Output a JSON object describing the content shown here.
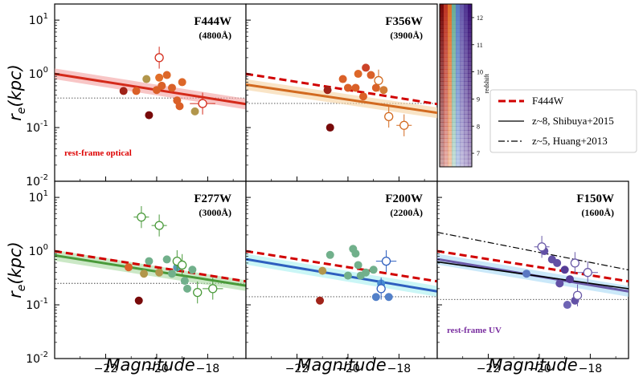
{
  "chart_data": {
    "type": "scatter",
    "layout": "2x3 grid of panels sharing axes",
    "xlabel": "Magnitude",
    "ylabel": "r_e(kpc)",
    "xlim": [
      -24,
      -16.5
    ],
    "ylim_log10": [
      -2,
      1.3
    ],
    "y_scale": "log",
    "x_ticks": [
      -22,
      -20,
      -18
    ],
    "y_ticks": [
      "10^1",
      "10^0",
      "10^-1",
      "10^-2"
    ],
    "legend": {
      "placement": "right",
      "entries": [
        {
          "label": "F444W",
          "style": "dashed",
          "color": "#d10000"
        },
        {
          "label": "z~8, Shibuya+2015",
          "style": "solid",
          "color": "#000000"
        },
        {
          "label": "z~5, Huang+2013",
          "style": "dashdot",
          "color": "#000000"
        }
      ]
    },
    "colorbar": {
      "label": "redshift",
      "ticks": [
        "7",
        "8",
        "9",
        "10",
        "11",
        "12"
      ],
      "range": [
        6.5,
        12.5
      ]
    },
    "panels": [
      {
        "title": "F444W",
        "subtitle": "(4800Å)",
        "note": "rest-frame optical",
        "note_color": "#dd0000",
        "color": "#d42a1a",
        "band_color": "#f4a0a0",
        "fit": {
          "a": 0.0,
          "m0": -24,
          "slope": -0.075
        },
        "ref_f444w": false,
        "shibuya": false,
        "huang": false,
        "dotted_level": -0.45,
        "points": [
          {
            "x": -21.3,
            "y": 0.48,
            "z": 7.0
          },
          {
            "x": -20.8,
            "y": 0.48,
            "z": 8.0
          },
          {
            "x": -20.4,
            "y": 0.8,
            "z": 8.5
          },
          {
            "x": -20.3,
            "y": 0.17,
            "z": 6.5
          },
          {
            "x": -20.0,
            "y": 0.5,
            "z": 8.0
          },
          {
            "x": -19.9,
            "y": 0.85,
            "z": 8.2
          },
          {
            "x": -19.8,
            "y": 0.6,
            "z": 8.0
          },
          {
            "x": -19.6,
            "y": 0.95,
            "z": 8.1
          },
          {
            "x": -19.4,
            "y": 0.55,
            "z": 8.0
          },
          {
            "x": -19.2,
            "y": 0.32,
            "z": 8.0
          },
          {
            "x": -19.1,
            "y": 0.25,
            "z": 8.0
          },
          {
            "x": -19.0,
            "y": 0.7,
            "z": 8.1
          },
          {
            "x": -18.5,
            "y": 0.2,
            "z": 8.5
          },
          {
            "x": -19.9,
            "y": 2.0,
            "open": true
          },
          {
            "x": -18.2,
            "y": 0.28,
            "open": true,
            "xerr": 0.5
          }
        ]
      },
      {
        "title": "F356W",
        "subtitle": "(3900Å)",
        "note": "",
        "note_color": "#000000",
        "color": "#d26a20",
        "band_color": "#f5d2a0",
        "fit": {
          "a": -0.2,
          "m0": -24,
          "slope": -0.07
        },
        "ref_f444w": true,
        "shibuya": false,
        "huang": false,
        "dotted_level": -0.55,
        "points": [
          {
            "x": -20.8,
            "y": 0.5,
            "z": 7.0
          },
          {
            "x": -20.7,
            "y": 0.1,
            "z": 6.5
          },
          {
            "x": -20.2,
            "y": 0.8,
            "z": 8.0
          },
          {
            "x": -20.0,
            "y": 0.55,
            "z": 8.0
          },
          {
            "x": -19.7,
            "y": 0.55,
            "z": 8.0
          },
          {
            "x": -19.6,
            "y": 1.0,
            "z": 8.1
          },
          {
            "x": -19.4,
            "y": 0.38,
            "z": 8.0
          },
          {
            "x": -19.3,
            "y": 1.3,
            "z": 7.6
          },
          {
            "x": -19.1,
            "y": 0.95,
            "z": 8.0
          },
          {
            "x": -18.9,
            "y": 0.55,
            "z": 8.0
          },
          {
            "x": -18.6,
            "y": 0.5,
            "z": 8.3
          },
          {
            "x": -18.8,
            "y": 0.75,
            "open": true
          },
          {
            "x": -18.4,
            "y": 0.16,
            "open": true
          },
          {
            "x": -17.8,
            "y": 0.11,
            "open": true,
            "xerr": 0.3
          }
        ]
      },
      {
        "title": "",
        "subtitle": "",
        "note": "",
        "note_color": "#000000",
        "color": "#000000",
        "band_color": "#ffffff",
        "fit": null,
        "ref_f444w": false,
        "shibuya": false,
        "huang": false,
        "dotted_level": null,
        "points": [],
        "is_legend": true
      },
      {
        "title": "F277W",
        "subtitle": "(3000Å)",
        "note": "",
        "note_color": "#000000",
        "color": "#4a9a3a",
        "band_color": "#a8d8a0",
        "fit": {
          "a": -0.08,
          "m0": -24,
          "slope": -0.075
        },
        "ref_f444w": true,
        "shibuya": false,
        "huang": false,
        "dotted_level": -0.6,
        "points": [
          {
            "x": -21.1,
            "y": 0.5,
            "z": 8.0
          },
          {
            "x": -20.7,
            "y": 0.12,
            "z": 6.5
          },
          {
            "x": -20.5,
            "y": 0.38,
            "z": 8.5
          },
          {
            "x": -20.3,
            "y": 0.65,
            "z": 9.0
          },
          {
            "x": -19.9,
            "y": 0.4,
            "z": 8.5
          },
          {
            "x": -19.6,
            "y": 0.7,
            "z": 9.0
          },
          {
            "x": -19.4,
            "y": 0.38,
            "z": 9.0
          },
          {
            "x": -19.2,
            "y": 0.5,
            "z": 9.3
          },
          {
            "x": -18.9,
            "y": 0.28,
            "z": 9.0
          },
          {
            "x": -18.6,
            "y": 0.45,
            "z": 9.0
          },
          {
            "x": -18.8,
            "y": 0.2,
            "z": 9.0
          },
          {
            "x": -20.6,
            "y": 4.3,
            "open": true,
            "xerr": 0.3
          },
          {
            "x": -19.9,
            "y": 3.0,
            "open": true,
            "xerr": 0.3
          },
          {
            "x": -19.2,
            "y": 0.65,
            "open": true
          },
          {
            "x": -19.0,
            "y": 0.55,
            "open": true
          },
          {
            "x": -18.4,
            "y": 0.17,
            "open": true
          },
          {
            "x": -17.8,
            "y": 0.2,
            "open": true,
            "xerr": 0.4
          }
        ]
      },
      {
        "title": "F200W",
        "subtitle": "(2200Å)",
        "note": "",
        "note_color": "#000000",
        "color": "#2e5fbf",
        "band_color": "#a6f0f0",
        "fit": {
          "a": -0.15,
          "m0": -24,
          "slope": -0.08
        },
        "ref_f444w": true,
        "shibuya": false,
        "huang": false,
        "dotted_level": -0.85,
        "points": [
          {
            "x": -21.1,
            "y": 0.12,
            "z": 7.0
          },
          {
            "x": -21.0,
            "y": 0.43,
            "z": 8.5
          },
          {
            "x": -20.7,
            "y": 0.85,
            "z": 9.0
          },
          {
            "x": -20.0,
            "y": 0.35,
            "z": 9.0
          },
          {
            "x": -19.8,
            "y": 1.1,
            "z": 9.0
          },
          {
            "x": -19.7,
            "y": 0.9,
            "z": 9.0
          },
          {
            "x": -19.6,
            "y": 0.55,
            "z": 9.0
          },
          {
            "x": -19.5,
            "y": 0.35,
            "z": 9.0
          },
          {
            "x": -19.3,
            "y": 0.4,
            "z": 9.0
          },
          {
            "x": -19.0,
            "y": 0.45,
            "z": 9.0
          },
          {
            "x": -18.7,
            "y": 0.25,
            "z": 9.5
          },
          {
            "x": -18.9,
            "y": 0.14,
            "z": 9.8
          },
          {
            "x": -18.4,
            "y": 0.14,
            "z": 9.8
          },
          {
            "x": -18.5,
            "y": 0.65,
            "open": true,
            "xerr": 0.4
          },
          {
            "x": -18.7,
            "y": 0.2,
            "open": true
          }
        ]
      },
      {
        "title": "F150W",
        "subtitle": "(1600Å)",
        "note": "rest-frame UV",
        "note_color": "#7a2fa0",
        "color": "#6a5aa8",
        "band_color": "#a6d8f5",
        "fit": {
          "a": -0.15,
          "m0": -24,
          "slope": -0.08
        },
        "ref_f444w": true,
        "shibuya": true,
        "huang": true,
        "dotted_level": -0.9,
        "points": [
          {
            "x": -20.5,
            "y": 0.38,
            "z": 10.0
          },
          {
            "x": -19.8,
            "y": 1.0,
            "z": 11.0
          },
          {
            "x": -19.5,
            "y": 0.7,
            "z": 11.0
          },
          {
            "x": -19.3,
            "y": 0.6,
            "z": 11.0
          },
          {
            "x": -19.2,
            "y": 0.25,
            "z": 11.0
          },
          {
            "x": -18.9,
            "y": 0.1,
            "z": 10.5
          },
          {
            "x": -19.0,
            "y": 0.45,
            "z": 11.5
          },
          {
            "x": -18.8,
            "y": 0.3,
            "z": 11.5
          },
          {
            "x": -18.6,
            "y": 0.12,
            "z": 11.0
          },
          {
            "x": -19.9,
            "y": 1.2,
            "open": true,
            "xerr": 0.3
          },
          {
            "x": -18.6,
            "y": 0.6,
            "open": true
          },
          {
            "x": -18.5,
            "y": 0.15,
            "open": true
          },
          {
            "x": -18.1,
            "y": 0.4,
            "open": true,
            "xerr": 0.4
          }
        ]
      }
    ]
  }
}
